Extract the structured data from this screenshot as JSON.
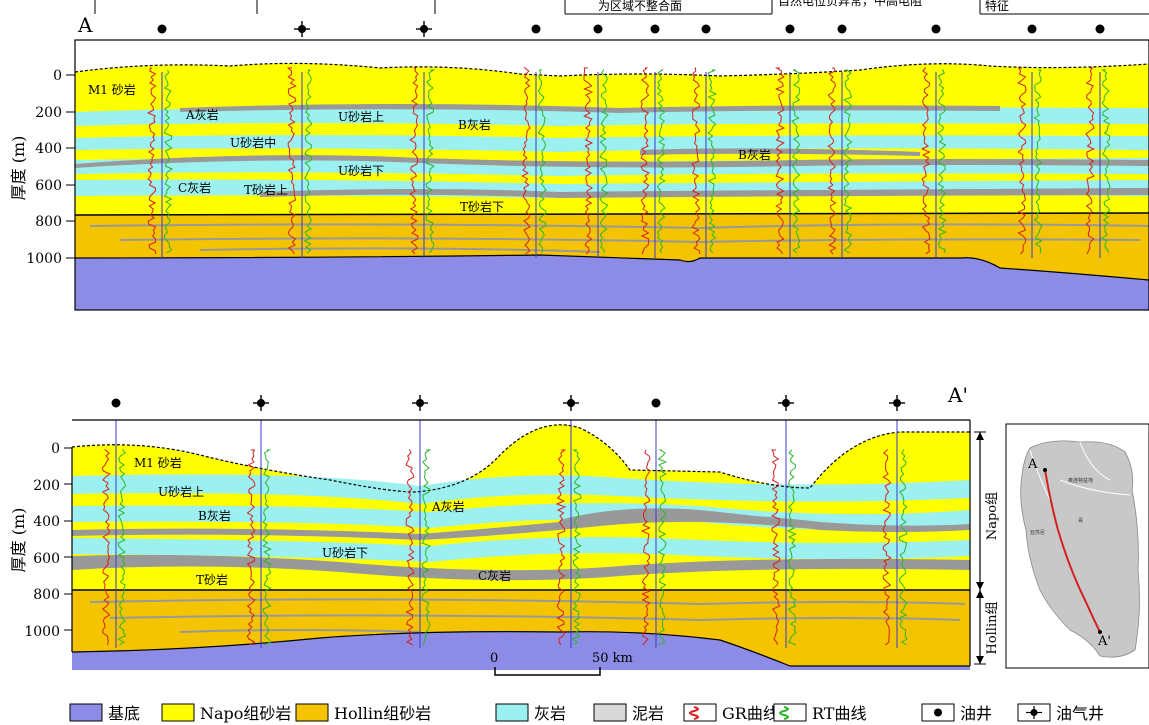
{
  "header": {
    "cell1": "为区域不整合面",
    "cell2": "自然电位负异常，中高电阻",
    "cell3": "特征"
  },
  "upper_section": {
    "left_marker": "A",
    "y_axis_label": "厚度 (m)",
    "ticks": [
      "0",
      "200",
      "400",
      "600",
      "800",
      "1000"
    ],
    "wells": [
      "oil",
      "gas",
      "gas",
      "oil",
      "oil",
      "oil",
      "oil",
      "oil",
      "oil",
      "oil",
      "oil",
      "oil"
    ],
    "labels": {
      "m1": "M1 砂岩",
      "a_ls": "A灰岩",
      "u_upper": "U砂岩上",
      "b_ls_left": "B灰岩",
      "u_mid": "U砂岩中",
      "b_ls_right": "B灰岩",
      "u_lower": "U砂岩下",
      "c_ls": "C灰岩",
      "t_upper": "T砂岩上",
      "t_lower": "T砂岩下"
    }
  },
  "lower_section": {
    "right_marker": "A'",
    "y_axis_label": "厚度 (m)",
    "ticks": [
      "0",
      "200",
      "400",
      "600",
      "800",
      "1000"
    ],
    "wells": [
      "oil",
      "gas",
      "gas",
      "gas",
      "oil",
      "gas",
      "gas"
    ],
    "labels": {
      "m1": "M1 砂岩",
      "u_upper": "U砂岩上",
      "b_ls": "B灰岩",
      "a_ls": "A灰岩",
      "u_lower": "U砂岩下",
      "c_ls": "C灰岩",
      "t_sand": "T砂岩"
    },
    "formations": {
      "napo": "Napo组",
      "hollin": "Hollin组"
    },
    "scale": {
      "zero": "0",
      "end": "50 km"
    }
  },
  "inset_map": {
    "start": "A",
    "end": "A'",
    "small_labels": [
      "奥连特盆地",
      "哥",
      "亚苏尼"
    ]
  },
  "legend": [
    {
      "label": "基底",
      "color": "#8c8ce6",
      "kind": "swatch"
    },
    {
      "label": "Napo组砂岩",
      "color": "#ffff00",
      "kind": "swatch"
    },
    {
      "label": "Hollin组砂岩",
      "color": "#f5c400",
      "kind": "swatch"
    },
    {
      "label": "灰岩",
      "color": "#9df0f0",
      "kind": "swatch"
    },
    {
      "label": "泥岩",
      "color": "#d9d9d9",
      "kind": "swatch"
    },
    {
      "label": "GR曲线",
      "color": "#d42020",
      "kind": "gr"
    },
    {
      "label": "RT曲线",
      "color": "#2bb52b",
      "kind": "rt"
    },
    {
      "label": "油井",
      "color": "#000000",
      "kind": "oil"
    },
    {
      "label": "油气井",
      "color": "#000000",
      "kind": "gas"
    }
  ],
  "colors": {
    "basement": "#8c8ce6",
    "napo": "#ffff00",
    "hollin": "#f5c400",
    "limestone": "#9df0f0",
    "mudstone": "#999999",
    "gr": "#d42020",
    "rt": "#2bb52b",
    "well": "#3a3ad0"
  }
}
